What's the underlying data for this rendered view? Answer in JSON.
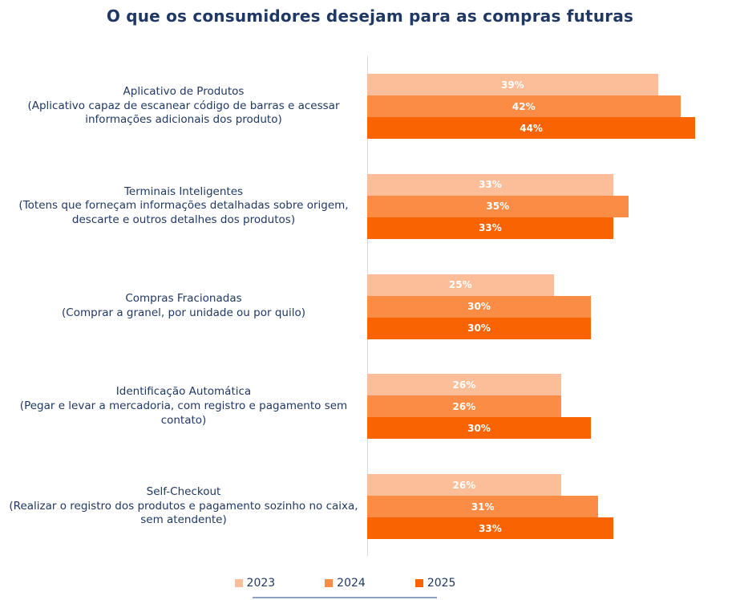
{
  "title": "O que os consumidores desejam para as compras futuras",
  "colors": {
    "title_text": "#1F3864",
    "category_text": "#1F3864",
    "axis_line": "#D9D9D9",
    "bar_value_text": "#FFFFFF"
  },
  "chart_data": {
    "type": "bar",
    "orientation": "horizontal",
    "unit": "%",
    "title": "O que os consumidores desejam para as compras futuras",
    "xlim": [
      0,
      50
    ],
    "grid": false,
    "value_labels": "inside-center",
    "legend_position": "bottom",
    "categories": [
      {
        "name": "Aplicativo de Produtos",
        "description": "(Aplicativo capaz de escanear código de barras e acessar informações adicionais dos produto)"
      },
      {
        "name": "Terminais Inteligentes",
        "description": "(Totens que forneçam informações detalhadas sobre origem, descarte e outros detalhes dos produtos)"
      },
      {
        "name": "Compras Fracionadas",
        "description": "(Comprar a granel, por unidade ou por quilo)"
      },
      {
        "name": "Identificação Automática",
        "description": "(Pegar e levar a mercadoria, com registro e pagamento sem contato)"
      },
      {
        "name": "Self-Checkout",
        "description": "(Realizar o registro dos produtos e pagamento sozinho no caixa, sem atendente)"
      }
    ],
    "series": [
      {
        "name": "2023",
        "color": "#FBBE99",
        "values": [
          39,
          33,
          25,
          26,
          26
        ]
      },
      {
        "name": "2024",
        "color": "#FA8C45",
        "values": [
          42,
          35,
          30,
          26,
          31
        ]
      },
      {
        "name": "2025",
        "color": "#F96302",
        "values": [
          44,
          33,
          30,
          30,
          33
        ]
      }
    ]
  }
}
